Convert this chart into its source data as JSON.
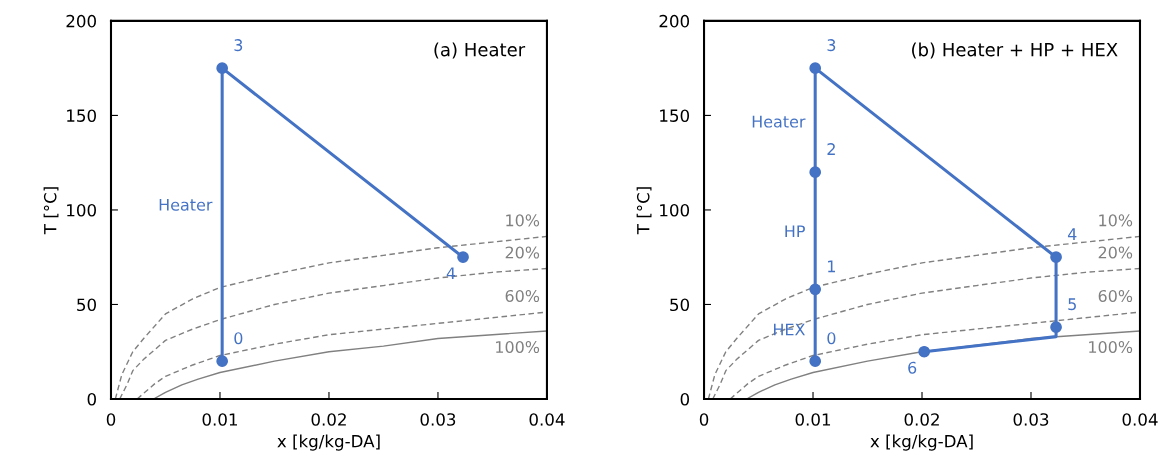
{
  "chart_data": [
    {
      "type": "line",
      "title": "(a) Heater",
      "xlabel": "x [kg/kg-DA]",
      "ylabel": "T [°C]",
      "xlim": [
        0,
        0.04
      ],
      "ylim": [
        0,
        200
      ],
      "xticks": [
        0,
        0.01,
        0.02,
        0.03,
        0.04
      ],
      "yticks": [
        0,
        50,
        100,
        150,
        200
      ],
      "grid": false,
      "legend": false,
      "series": [
        {
          "color": "#808080",
          "line_style": "dashed",
          "x": [
            0.0004,
            0.001,
            0.002,
            0.003,
            0.005,
            0.0075,
            0.01,
            0.015,
            0.02,
            0.025,
            0.03,
            0.035,
            0.04
          ],
          "values": [
            0,
            13,
            25,
            32,
            45,
            53,
            59,
            66,
            72,
            76,
            80,
            83,
            86
          ]
        },
        {
          "color": "#808080",
          "line_style": "dashed",
          "x": [
            0.0008,
            0.0015,
            0.002,
            0.003,
            0.005,
            0.0075,
            0.01,
            0.015,
            0.02,
            0.025,
            0.03,
            0.035,
            0.04
          ],
          "values": [
            0,
            8,
            15,
            21,
            31,
            37,
            42,
            50,
            56,
            60,
            64,
            67,
            69
          ]
        },
        {
          "color": "#808080",
          "line_style": "dashed",
          "x": [
            0.0024,
            0.003,
            0.004,
            0.005,
            0.0075,
            0.01,
            0.015,
            0.02,
            0.025,
            0.03,
            0.035,
            0.04
          ],
          "values": [
            0,
            3,
            8,
            12,
            18,
            23,
            29,
            34,
            37,
            40,
            43,
            46
          ]
        },
        {
          "color": "#808080",
          "line_style": "solid",
          "x": [
            0.0039,
            0.005,
            0.0065,
            0.008,
            0.01,
            0.015,
            0.02,
            0.025,
            0.03,
            0.035,
            0.04
          ],
          "values": [
            0,
            3.5,
            7.5,
            10.5,
            14,
            20,
            25,
            28,
            32,
            34,
            36
          ]
        },
        {
          "color": "#4472c4",
          "line_style": "solid",
          "x": [
            0.0102,
            0.0102,
            0.0323
          ],
          "values": [
            20,
            175,
            75
          ]
        },
        {
          "type": "scatter",
          "color": "#4472c4",
          "marker": "circle",
          "x": [
            0.0102,
            0.0102,
            0.0323
          ],
          "values": [
            20,
            175,
            75
          ]
        }
      ],
      "annotations": [
        {
          "text": "0",
          "x": 0.0102,
          "y": 20
        },
        {
          "text": "3",
          "x": 0.0102,
          "y": 175
        },
        {
          "text": "4",
          "x": 0.0323,
          "y": 75
        },
        {
          "text": "Heater",
          "x": 0.0102,
          "y": 102
        },
        {
          "text": "10%",
          "x": 0.04,
          "y": 86
        },
        {
          "text": "20%",
          "x": 0.04,
          "y": 69
        },
        {
          "text": "60%",
          "x": 0.04,
          "y": 46
        },
        {
          "text": "100%",
          "x": 0.04,
          "y": 36
        }
      ]
    },
    {
      "type": "line",
      "title": "(b) Heater + HP + HEX",
      "xlabel": "x [kg/kg-DA]",
      "ylabel": "T [°C]",
      "xlim": [
        0,
        0.04
      ],
      "ylim": [
        0,
        200
      ],
      "xticks": [
        0,
        0.01,
        0.02,
        0.03,
        0.04
      ],
      "yticks": [
        0,
        50,
        100,
        150,
        200
      ],
      "grid": false,
      "legend": false,
      "series": [
        {
          "color": "#808080",
          "line_style": "dashed",
          "x": [
            0.0004,
            0.001,
            0.002,
            0.003,
            0.005,
            0.0075,
            0.01,
            0.015,
            0.02,
            0.025,
            0.03,
            0.035,
            0.04
          ],
          "values": [
            0,
            13,
            25,
            32,
            45,
            53,
            59,
            66,
            72,
            76,
            80,
            83,
            86
          ]
        },
        {
          "color": "#808080",
          "line_style": "dashed",
          "x": [
            0.0008,
            0.0015,
            0.002,
            0.003,
            0.005,
            0.0075,
            0.01,
            0.015,
            0.02,
            0.025,
            0.03,
            0.035,
            0.04
          ],
          "values": [
            0,
            8,
            15,
            21,
            31,
            37,
            42,
            50,
            56,
            60,
            64,
            67,
            69
          ]
        },
        {
          "color": "#808080",
          "line_style": "dashed",
          "x": [
            0.0024,
            0.003,
            0.004,
            0.005,
            0.0075,
            0.01,
            0.015,
            0.02,
            0.025,
            0.03,
            0.035,
            0.04
          ],
          "values": [
            0,
            3,
            8,
            12,
            18,
            23,
            29,
            34,
            37,
            40,
            43,
            46
          ]
        },
        {
          "color": "#808080",
          "line_style": "solid",
          "x": [
            0.0039,
            0.005,
            0.0065,
            0.008,
            0.01,
            0.015,
            0.02,
            0.03,
            0.035,
            0.04
          ],
          "values": [
            0,
            3.5,
            7.5,
            10.5,
            14,
            20,
            25,
            32,
            34,
            36
          ]
        },
        {
          "color": "#4472c4",
          "line_style": "solid",
          "x": [
            0.0102,
            0.0102,
            0.0102,
            0.0102,
            0.0323,
            0.0323,
            0.0323,
            0.0202
          ],
          "values": [
            20,
            58,
            120,
            175,
            75,
            38,
            33,
            25
          ]
        },
        {
          "type": "scatter",
          "color": "#4472c4",
          "marker": "circle",
          "x": [
            0.0102,
            0.0102,
            0.0102,
            0.0102,
            0.0323,
            0.0323,
            0.0202
          ],
          "values": [
            20,
            58,
            120,
            175,
            75,
            38,
            25
          ]
        }
      ],
      "annotations": [
        {
          "text": "0",
          "x": 0.0102,
          "y": 20
        },
        {
          "text": "1",
          "x": 0.0102,
          "y": 58
        },
        {
          "text": "2",
          "x": 0.0102,
          "y": 120
        },
        {
          "text": "3",
          "x": 0.0102,
          "y": 175
        },
        {
          "text": "4",
          "x": 0.0323,
          "y": 75
        },
        {
          "text": "5",
          "x": 0.0323,
          "y": 38
        },
        {
          "text": "6",
          "x": 0.0202,
          "y": 25
        },
        {
          "text": "Heater",
          "x": 0.0102,
          "y": 146
        },
        {
          "text": "HP",
          "x": 0.0102,
          "y": 88
        },
        {
          "text": "HEX",
          "x": 0.0102,
          "y": 36
        },
        {
          "text": "10%",
          "x": 0.04,
          "y": 86
        },
        {
          "text": "20%",
          "x": 0.04,
          "y": 69
        },
        {
          "text": "60%",
          "x": 0.04,
          "y": 46
        },
        {
          "text": "100%",
          "x": 0.04,
          "y": 36
        }
      ]
    }
  ]
}
